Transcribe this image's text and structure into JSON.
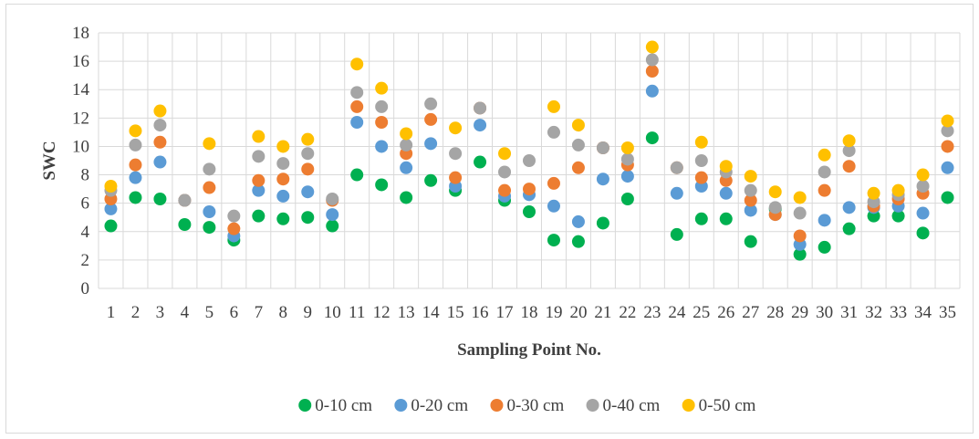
{
  "chart_data": {
    "type": "scatter",
    "title": "",
    "xlabel": "Sampling Point No.",
    "ylabel": "SWC",
    "ylim": [
      0,
      18
    ],
    "yticks": [
      0,
      2,
      4,
      6,
      8,
      10,
      12,
      14,
      16,
      18
    ],
    "x": [
      1,
      2,
      3,
      4,
      5,
      6,
      7,
      8,
      9,
      10,
      11,
      12,
      13,
      14,
      15,
      16,
      17,
      18,
      19,
      20,
      21,
      22,
      23,
      24,
      25,
      26,
      27,
      28,
      29,
      30,
      31,
      32,
      33,
      34,
      35
    ],
    "grid": true,
    "legend_position": "bottom",
    "series": [
      {
        "name": "0-10 cm",
        "color": "#00b050",
        "values": [
          4.4,
          6.4,
          6.3,
          4.5,
          4.3,
          3.4,
          5.1,
          4.9,
          5.0,
          4.4,
          8.0,
          7.3,
          6.4,
          7.6,
          6.9,
          8.9,
          6.2,
          5.4,
          3.4,
          3.3,
          4.6,
          6.3,
          10.6,
          3.8,
          4.9,
          4.9,
          3.3,
          5.6,
          2.4,
          2.9,
          4.2,
          5.1,
          5.1,
          3.9,
          6.4
        ]
      },
      {
        "name": "0-20 cm",
        "color": "#5b9bd5",
        "values": [
          5.6,
          7.8,
          8.9,
          6.2,
          5.4,
          3.7,
          6.9,
          6.5,
          6.8,
          5.2,
          11.7,
          10.0,
          8.5,
          10.2,
          7.2,
          11.5,
          6.5,
          6.6,
          5.8,
          4.7,
          7.7,
          7.9,
          13.9,
          6.7,
          7.2,
          6.7,
          5.5,
          5.2,
          3.1,
          4.8,
          5.7,
          5.7,
          5.8,
          5.3,
          8.5
        ]
      },
      {
        "name": "0-30 cm",
        "color": "#ed7d31",
        "values": [
          6.3,
          8.7,
          10.3,
          6.2,
          7.1,
          4.2,
          7.6,
          7.7,
          8.4,
          6.2,
          12.8,
          11.7,
          9.5,
          11.9,
          7.8,
          12.7,
          6.9,
          7.0,
          7.4,
          8.5,
          9.9,
          8.7,
          15.3,
          8.5,
          7.8,
          7.6,
          6.2,
          5.2,
          3.7,
          6.9,
          8.6,
          5.8,
          6.3,
          6.7,
          10.0
        ]
      },
      {
        "name": "0-40 cm",
        "color": "#a5a5a5",
        "values": [
          6.9,
          10.1,
          11.5,
          6.2,
          8.4,
          5.1,
          9.3,
          8.8,
          9.5,
          6.3,
          13.8,
          12.8,
          10.1,
          13.0,
          9.5,
          12.7,
          8.2,
          9.0,
          11.0,
          10.1,
          9.9,
          9.1,
          16.1,
          8.5,
          9.0,
          8.2,
          6.9,
          5.7,
          5.3,
          8.2,
          9.7,
          6.1,
          6.6,
          7.2,
          11.1
        ]
      },
      {
        "name": "0-50 cm",
        "color": "#ffc000",
        "values": [
          7.2,
          11.1,
          12.5,
          null,
          10.2,
          null,
          10.7,
          10.0,
          10.5,
          null,
          15.8,
          14.1,
          10.9,
          null,
          11.3,
          null,
          9.5,
          null,
          12.8,
          11.5,
          null,
          9.9,
          17.0,
          null,
          10.3,
          8.6,
          7.9,
          6.8,
          6.4,
          9.4,
          10.4,
          6.7,
          6.9,
          8.0,
          11.8
        ]
      }
    ]
  }
}
